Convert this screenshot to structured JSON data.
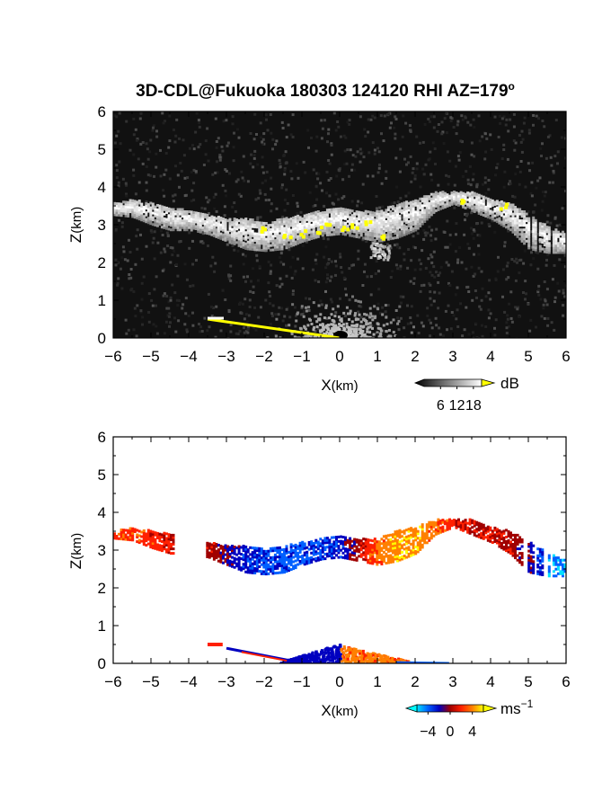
{
  "title": "3D-CDL@Fukuoka 180303 124120 RHI AZ=179",
  "title_degree": "o",
  "chart_data": [
    {
      "type": "heatmap",
      "name": "signal-intensity-panel",
      "xlabel": "X",
      "xlabel_unit": "(km)",
      "ylabel": "Z",
      "ylabel_unit": "(km)",
      "xlim": [
        -6,
        6
      ],
      "ylim": [
        0,
        6
      ],
      "x_ticks": [
        "−6",
        "−5",
        "−4",
        "−3",
        "−2",
        "−1",
        "0",
        "1",
        "2",
        "3",
        "4",
        "5",
        "6"
      ],
      "y_ticks": [
        "0",
        "1",
        "2",
        "3",
        "4",
        "5",
        "6"
      ],
      "colorbar": {
        "unit": "dB",
        "ticks": [
          "6",
          "12",
          "18"
        ],
        "tick_values": [
          6,
          12,
          18
        ],
        "range": [
          0,
          21
        ],
        "colors": [
          "#000000",
          "#ffffff"
        ],
        "over_color": "#ffff00"
      },
      "cloud_layer": {
        "x": [
          -6.0,
          -5.5,
          -5.0,
          -4.5,
          -4.0,
          -3.5,
          -3.0,
          -2.5,
          -2.0,
          -1.5,
          -1.0,
          -0.5,
          0.0,
          0.5,
          1.0,
          1.5,
          2.0,
          2.5,
          3.0,
          3.5,
          4.0,
          4.5,
          5.0,
          5.5,
          6.0
        ],
        "z_base": [
          3.3,
          3.25,
          3.05,
          2.9,
          2.9,
          2.8,
          2.6,
          2.4,
          2.35,
          2.4,
          2.6,
          2.75,
          2.8,
          2.7,
          2.6,
          2.7,
          2.9,
          3.4,
          3.6,
          3.4,
          3.2,
          2.9,
          2.4,
          2.3,
          2.3
        ],
        "z_top": [
          3.6,
          3.7,
          3.6,
          3.5,
          3.4,
          3.3,
          3.2,
          3.2,
          3.1,
          3.2,
          3.3,
          3.4,
          3.5,
          3.4,
          3.4,
          3.6,
          3.7,
          3.9,
          3.9,
          3.9,
          3.7,
          3.6,
          3.3,
          3.0,
          2.8
        ]
      },
      "near_ground_echo": {
        "x": [
          -3.5,
          0.0
        ],
        "z": [
          0.5,
          0.0
        ]
      },
      "saturated_points": [
        {
          "x": -1.4,
          "z": 2.7
        },
        {
          "x": -1.0,
          "z": 2.8
        },
        {
          "x": -0.6,
          "z": 2.9
        },
        {
          "x": -0.3,
          "z": 3.0
        },
        {
          "x": 0.1,
          "z": 2.95
        },
        {
          "x": 0.4,
          "z": 3.05
        },
        {
          "x": 0.7,
          "z": 3.1
        },
        {
          "x": 1.2,
          "z": 2.75
        },
        {
          "x": 3.3,
          "z": 3.7
        },
        {
          "x": 4.3,
          "z": 3.55
        },
        {
          "x": -2.0,
          "z": 2.9
        }
      ]
    },
    {
      "type": "heatmap",
      "name": "doppler-velocity-panel",
      "xlabel": "X",
      "xlabel_unit": "(km)",
      "ylabel": "Z",
      "ylabel_unit": "(km)",
      "xlim": [
        -6,
        6
      ],
      "ylim": [
        0,
        6
      ],
      "x_ticks": [
        "−6",
        "−5",
        "−4",
        "−3",
        "−2",
        "−1",
        "0",
        "1",
        "2",
        "3",
        "4",
        "5",
        "6"
      ],
      "y_ticks": [
        "0",
        "1",
        "2",
        "3",
        "4",
        "5",
        "6"
      ],
      "colorbar": {
        "unit": "ms",
        "unit_exponent": "−1",
        "ticks": [
          "−4",
          "0",
          "4"
        ],
        "tick_values": [
          -4,
          0,
          4
        ],
        "range": [
          -6,
          6
        ],
        "colors": [
          "#00e0ff",
          "#0060ff",
          "#0000c0",
          "#a00000",
          "#ff2000",
          "#ff8000",
          "#ffff00"
        ],
        "under_color": "#00ffff",
        "over_color": "#ffff00"
      },
      "velocity_profile": {
        "x": [
          -6.0,
          -5.5,
          -5.0,
          -4.5,
          -4.0,
          -3.5,
          -3.0,
          -2.5,
          -2.0,
          -1.5,
          -1.0,
          -0.5,
          0.0,
          0.5,
          1.0,
          1.5,
          2.0,
          2.5,
          3.0,
          3.5,
          4.0,
          4.5,
          5.0,
          5.5,
          6.0
        ],
        "v": [
          2.5,
          2.5,
          2.0,
          1.5,
          1.0,
          0.5,
          -1.0,
          -2.5,
          -3.0,
          -3.5,
          -3.5,
          -3.0,
          -2.5,
          0.5,
          3.5,
          4.5,
          4.5,
          3.5,
          1.5,
          0.5,
          1.0,
          0.5,
          -1.0,
          -4.5,
          -4.5
        ]
      }
    }
  ]
}
